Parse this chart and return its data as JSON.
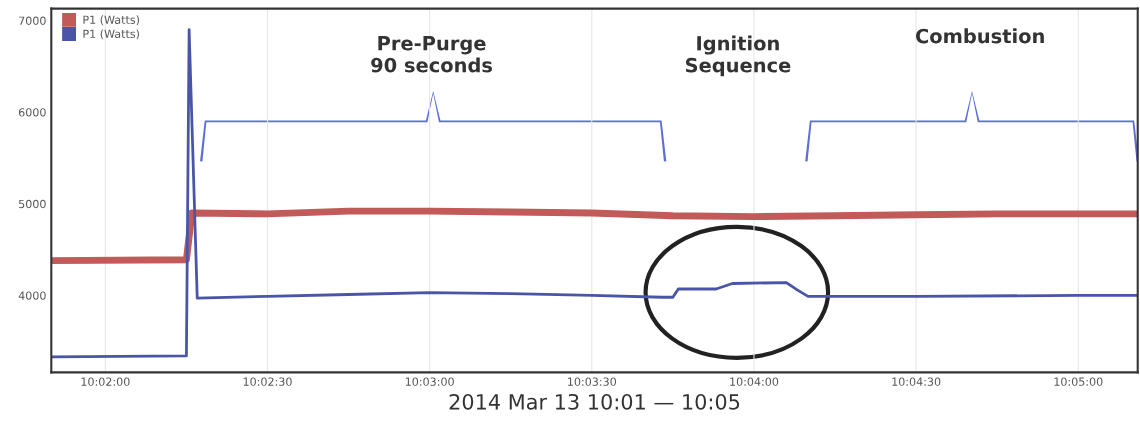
{
  "chart_data": {
    "type": "line",
    "xlabel": "2014 Mar 13 10:01 — 10:05",
    "series": [
      {
        "name": "P1 (Watts)",
        "color": "#c25a5a",
        "x": [
          10.030556,
          10.0375,
          10.037778,
          10.041667,
          10.045833,
          10.05,
          10.054167,
          10.058333,
          10.0625,
          10.066667,
          10.070833,
          10.075,
          10.079167,
          10.083333,
          10.086389
        ],
        "values": [
          4380,
          4390,
          4900,
          4890,
          4920,
          4920,
          4910,
          4900,
          4870,
          4860,
          4870,
          4880,
          4890,
          4890,
          4890
        ]
      },
      {
        "name": "P1 (Watts)",
        "color": "#4a55a8",
        "x": [
          10.030556,
          10.0375,
          10.037639,
          10.038056,
          10.041667,
          10.045833,
          10.05,
          10.054167,
          10.058333,
          10.061944,
          10.0625,
          10.062778,
          10.064722,
          10.065556,
          10.068333,
          10.068889,
          10.069444,
          10.075,
          10.083333,
          10.086389
        ],
        "values": [
          3330,
          3340,
          6900,
          3970,
          3990,
          4010,
          4030,
          4020,
          4000,
          3980,
          3980,
          4070,
          4070,
          4130,
          4140,
          4060,
          3990,
          3990,
          4000,
          4000
        ]
      }
    ],
    "xlim": [
      10.030556,
      10.086389
    ],
    "ylim": [
      3160,
      7130
    ],
    "xticks": [
      {
        "value": 10.033333,
        "label": "10:02:00"
      },
      {
        "value": 10.041667,
        "label": "10:02:30"
      },
      {
        "value": 10.05,
        "label": "10:03:00"
      },
      {
        "value": 10.058333,
        "label": "10:03:30"
      },
      {
        "value": 10.066667,
        "label": "10:04:00"
      },
      {
        "value": 10.075,
        "label": "10:04:30"
      },
      {
        "value": 10.083333,
        "label": "10:05:00"
      }
    ],
    "yticks": [
      4000,
      5000,
      6000,
      7000
    ],
    "grid": "x",
    "legend": "top left",
    "marker": "none",
    "line_style": "solid",
    "annotations": [
      "Pre-Purge\n90 seconds",
      "Ignition\nSequence",
      "Combustion"
    ]
  }
}
